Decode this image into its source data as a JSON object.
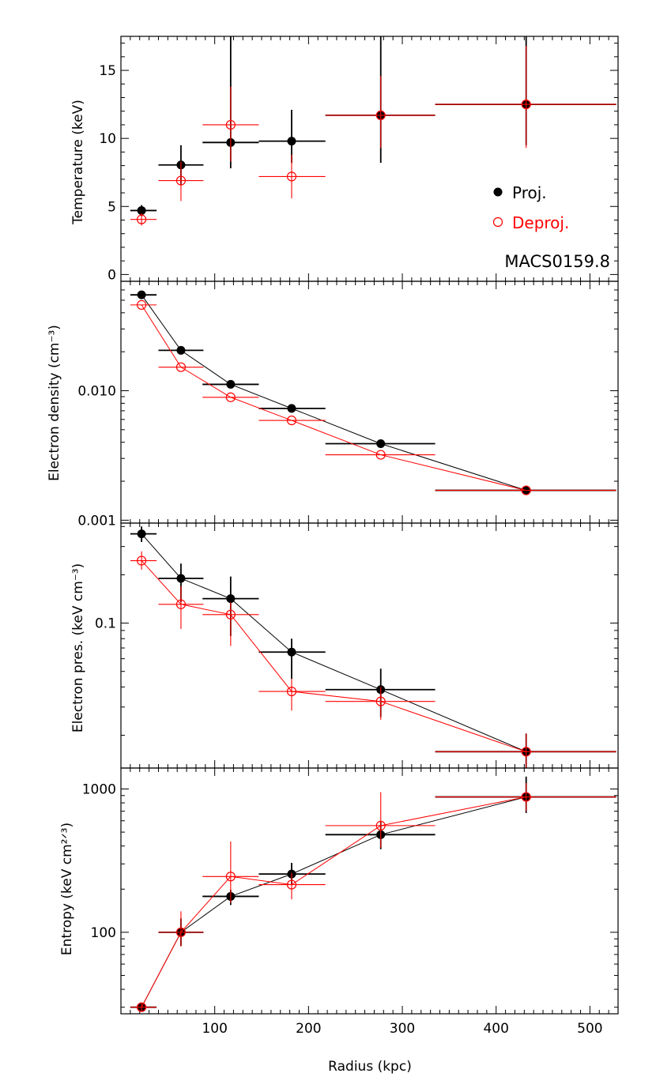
{
  "chart_data": [
    {
      "type": "scatter",
      "xlabel": "",
      "ylabel": "Temperature (keV)",
      "ylim": [
        -0.5,
        17.5
      ],
      "yscale": "linear",
      "yticks": [
        0,
        5,
        10,
        15
      ],
      "ytick_labels": [
        "0",
        "5",
        "10",
        "15"
      ],
      "series": [
        {
          "name": "Proj.",
          "color": "#000000",
          "marker": "filled-circle",
          "connect": false,
          "points": [
            {
              "x": 22,
              "xlo": 10,
              "xhi": 38,
              "y": 4.7,
              "ylo": 4.3,
              "yhi": 5.1
            },
            {
              "x": 64,
              "xlo": 40,
              "xhi": 88,
              "y": 8.05,
              "ylo": 6.6,
              "yhi": 9.5
            },
            {
              "x": 117,
              "xlo": 87,
              "xhi": 147,
              "y": 9.7,
              "ylo": 7.8,
              "yhi": 17.5
            },
            {
              "x": 182,
              "xlo": 147,
              "xhi": 218,
              "y": 9.8,
              "ylo": 8.2,
              "yhi": 12.1
            },
            {
              "x": 277,
              "xlo": 218,
              "xhi": 335,
              "y": 11.7,
              "ylo": 8.2,
              "yhi": 17.5
            },
            {
              "x": 432,
              "xlo": 335,
              "xhi": 528,
              "y": 12.5,
              "ylo": 9.5,
              "yhi": 17.5
            }
          ]
        },
        {
          "name": "Deproj.",
          "color": "#ff0000",
          "marker": "open-circle",
          "connect": false,
          "points": [
            {
              "x": 22,
              "xlo": 10,
              "xhi": 38,
              "y": 4.05,
              "ylo": 3.6,
              "yhi": 4.5
            },
            {
              "x": 64,
              "xlo": 40,
              "xhi": 88,
              "y": 6.9,
              "ylo": 5.4,
              "yhi": 8.3
            },
            {
              "x": 117,
              "xlo": 87,
              "xhi": 147,
              "y": 11.0,
              "ylo": 8.3,
              "yhi": 13.8
            },
            {
              "x": 182,
              "xlo": 147,
              "xhi": 218,
              "y": 7.2,
              "ylo": 5.6,
              "yhi": 8.8
            },
            {
              "x": 277,
              "xlo": 218,
              "xhi": 335,
              "y": 11.7,
              "ylo": 9.3,
              "yhi": 14.6
            },
            {
              "x": 432,
              "xlo": 335,
              "xhi": 528,
              "y": 12.5,
              "ylo": 9.3,
              "yhi": 16.8
            }
          ]
        }
      ],
      "legend": {
        "position": "right",
        "entries": [
          "Proj.",
          "Deproj."
        ]
      },
      "annotation": "MACS0159.8"
    },
    {
      "type": "line",
      "xlabel": "",
      "ylabel": "Electron density (cm⁻³)",
      "ylim": [
        0.00095,
        0.07
      ],
      "yscale": "log",
      "yticks": [
        0.001,
        0.01
      ],
      "ytick_labels": [
        "0.001",
        "0.010"
      ],
      "series": [
        {
          "name": "Proj.",
          "color": "#000000",
          "marker": "filled-circle",
          "connect": true,
          "points": [
            {
              "x": 22,
              "xlo": 10,
              "xhi": 38,
              "y": 0.055
            },
            {
              "x": 64,
              "xlo": 40,
              "xhi": 88,
              "y": 0.0205
            },
            {
              "x": 117,
              "xlo": 87,
              "xhi": 147,
              "y": 0.0112
            },
            {
              "x": 182,
              "xlo": 147,
              "xhi": 218,
              "y": 0.0073
            },
            {
              "x": 277,
              "xlo": 218,
              "xhi": 335,
              "y": 0.0039
            },
            {
              "x": 432,
              "xlo": 335,
              "xhi": 528,
              "y": 0.0017
            }
          ]
        },
        {
          "name": "Deproj.",
          "color": "#ff0000",
          "marker": "open-circle",
          "connect": true,
          "points": [
            {
              "x": 22,
              "xlo": 10,
              "xhi": 38,
              "y": 0.046
            },
            {
              "x": 64,
              "xlo": 40,
              "xhi": 88,
              "y": 0.0152
            },
            {
              "x": 117,
              "xlo": 87,
              "xhi": 147,
              "y": 0.0089
            },
            {
              "x": 182,
              "xlo": 147,
              "xhi": 218,
              "y": 0.0059
            },
            {
              "x": 277,
              "xlo": 218,
              "xhi": 335,
              "y": 0.0032
            },
            {
              "x": 432,
              "xlo": 335,
              "xhi": 528,
              "y": 0.0017
            }
          ]
        }
      ]
    },
    {
      "type": "line",
      "xlabel": "",
      "ylabel": "Electron pres. (keV cm⁻³)",
      "ylim": [
        0.0125,
        0.42
      ],
      "yscale": "log",
      "yticks": [
        0.1
      ],
      "ytick_labels": [
        "0.1"
      ],
      "series": [
        {
          "name": "Proj.",
          "color": "#000000",
          "marker": "filled-circle",
          "connect": true,
          "points": [
            {
              "x": 22,
              "xlo": 10,
              "xhi": 38,
              "y": 0.36,
              "ylo": 0.32,
              "yhi": 0.4
            },
            {
              "x": 64,
              "xlo": 40,
              "xhi": 88,
              "y": 0.19,
              "ylo": 0.135,
              "yhi": 0.235
            },
            {
              "x": 117,
              "xlo": 87,
              "xhi": 147,
              "y": 0.142,
              "ylo": 0.083,
              "yhi": 0.195
            },
            {
              "x": 182,
              "xlo": 147,
              "xhi": 218,
              "y": 0.066,
              "ylo": 0.045,
              "yhi": 0.08
            },
            {
              "x": 277,
              "xlo": 218,
              "xhi": 335,
              "y": 0.0385,
              "ylo": 0.026,
              "yhi": 0.052
            },
            {
              "x": 432,
              "xlo": 335,
              "xhi": 528,
              "y": 0.0158,
              "ylo": 0.0125,
              "yhi": 0.0205
            }
          ]
        },
        {
          "name": "Deproj.",
          "color": "#ff0000",
          "marker": "open-circle",
          "connect": true,
          "points": [
            {
              "x": 22,
              "xlo": 10,
              "xhi": 38,
              "y": 0.245,
              "ylo": 0.215,
              "yhi": 0.28
            },
            {
              "x": 64,
              "xlo": 40,
              "xhi": 88,
              "y": 0.131,
              "ylo": 0.092,
              "yhi": 0.17
            },
            {
              "x": 117,
              "xlo": 87,
              "xhi": 147,
              "y": 0.113,
              "ylo": 0.072,
              "yhi": 0.135
            },
            {
              "x": 182,
              "xlo": 147,
              "xhi": 218,
              "y": 0.0375,
              "ylo": 0.0285,
              "yhi": 0.045
            },
            {
              "x": 277,
              "xlo": 218,
              "xhi": 335,
              "y": 0.0325,
              "ylo": 0.025,
              "yhi": 0.04
            },
            {
              "x": 432,
              "xlo": 335,
              "xhi": 528,
              "y": 0.0158,
              "ylo": 0.0125,
              "yhi": 0.0205
            }
          ]
        }
      ]
    },
    {
      "type": "line",
      "xlabel": "Radius (kpc)",
      "ylabel": "Entropy (keV cm²ᐟ³)",
      "ylim": [
        27,
        1400
      ],
      "yscale": "log",
      "yticks": [
        100,
        1000
      ],
      "ytick_labels": [
        "100",
        "1000"
      ],
      "xticks": [
        100,
        200,
        300,
        400,
        500
      ],
      "xtick_labels": [
        "100",
        "200",
        "300",
        "400",
        "500"
      ],
      "series": [
        {
          "name": "Proj.",
          "color": "#000000",
          "marker": "filled-circle",
          "connect": true,
          "points": [
            {
              "x": 22,
              "xlo": 10,
              "xhi": 38,
              "y": 30,
              "ylo": 28.5,
              "yhi": 31.5
            },
            {
              "x": 64,
              "xlo": 40,
              "xhi": 88,
              "y": 100,
              "ylo": 80,
              "yhi": 125
            },
            {
              "x": 117,
              "xlo": 87,
              "xhi": 147,
              "y": 178,
              "ylo": 155,
              "yhi": 198
            },
            {
              "x": 182,
              "xlo": 147,
              "xhi": 218,
              "y": 255,
              "ylo": 215,
              "yhi": 305
            },
            {
              "x": 277,
              "xlo": 218,
              "xhi": 335,
              "y": 480,
              "ylo": 380,
              "yhi": 590
            },
            {
              "x": 432,
              "xlo": 335,
              "xhi": 528,
              "y": 880,
              "ylo": 680,
              "yhi": 1220
            }
          ]
        },
        {
          "name": "Deproj.",
          "color": "#ff0000",
          "marker": "open-circle",
          "connect": true,
          "points": [
            {
              "x": 22,
              "xlo": 10,
              "xhi": 38,
              "y": 30,
              "ylo": 28,
              "yhi": 32
            },
            {
              "x": 64,
              "xlo": 40,
              "xhi": 88,
              "y": 100,
              "ylo": 80,
              "yhi": 140
            },
            {
              "x": 117,
              "xlo": 87,
              "xhi": 147,
              "y": 245,
              "ylo": 160,
              "yhi": 430
            },
            {
              "x": 182,
              "xlo": 147,
              "xhi": 218,
              "y": 215,
              "ylo": 170,
              "yhi": 260
            },
            {
              "x": 277,
              "xlo": 218,
              "xhi": 335,
              "y": 555,
              "ylo": 390,
              "yhi": 950
            },
            {
              "x": 432,
              "xlo": 335,
              "xhi": 528,
              "y": 880,
              "ylo": 700,
              "yhi": 1100
            }
          ]
        }
      ]
    }
  ],
  "xlim": [
    0,
    530
  ]
}
